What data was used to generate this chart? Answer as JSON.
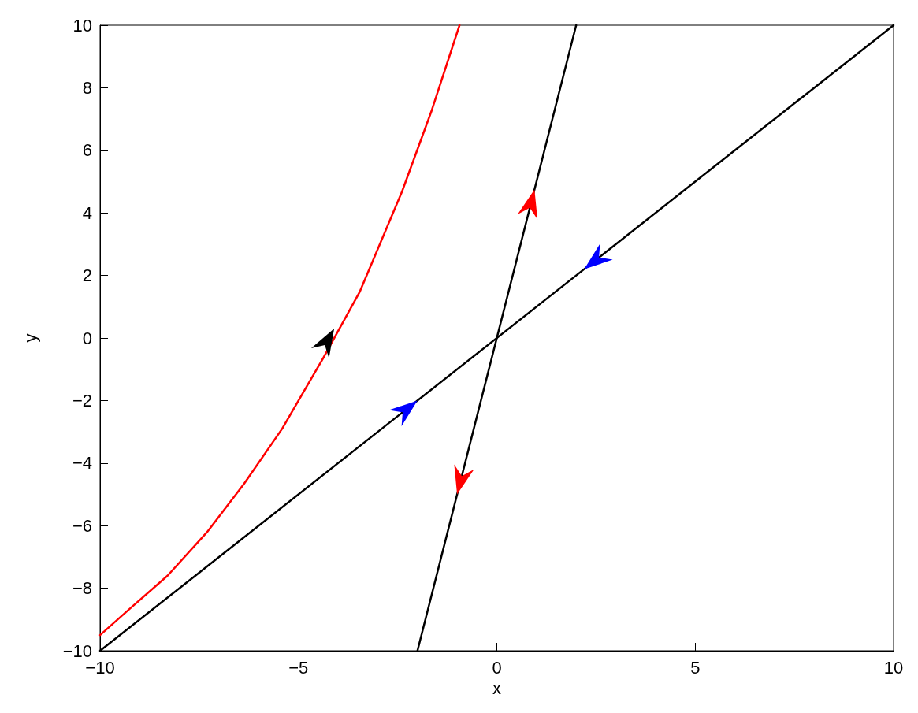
{
  "chart_data": {
    "type": "line",
    "xlabel": "x",
    "ylabel": "y",
    "xlim": [
      -10,
      10
    ],
    "xticks": [
      -10,
      -5,
      0,
      5,
      10
    ],
    "ylim": [
      -10,
      10
    ],
    "yticks": [
      -10,
      -8,
      -6,
      -4,
      -2,
      0,
      2,
      4,
      6,
      8,
      10
    ],
    "grid": false,
    "marker": "none",
    "line_style": "solid",
    "series": [
      {
        "color": "#ff0000",
        "x": [
          -10,
          -9.2,
          -8.3,
          -7.3,
          -6.37,
          -5.41,
          -4.38,
          -3.45,
          -2.39,
          -1.64,
          -0.94
        ],
        "values": [
          -9.5,
          -8.6,
          -7.6,
          -6.2,
          -4.66,
          -2.9,
          -0.65,
          1.49,
          4.68,
          7.28,
          10
        ]
      },
      {
        "color": "#000000",
        "x": [
          -10,
          10
        ],
        "values": [
          -10,
          10
        ]
      },
      {
        "color": "#000000",
        "x": [
          -2,
          2
        ],
        "values": [
          -10,
          10
        ]
      }
    ]
  }
}
